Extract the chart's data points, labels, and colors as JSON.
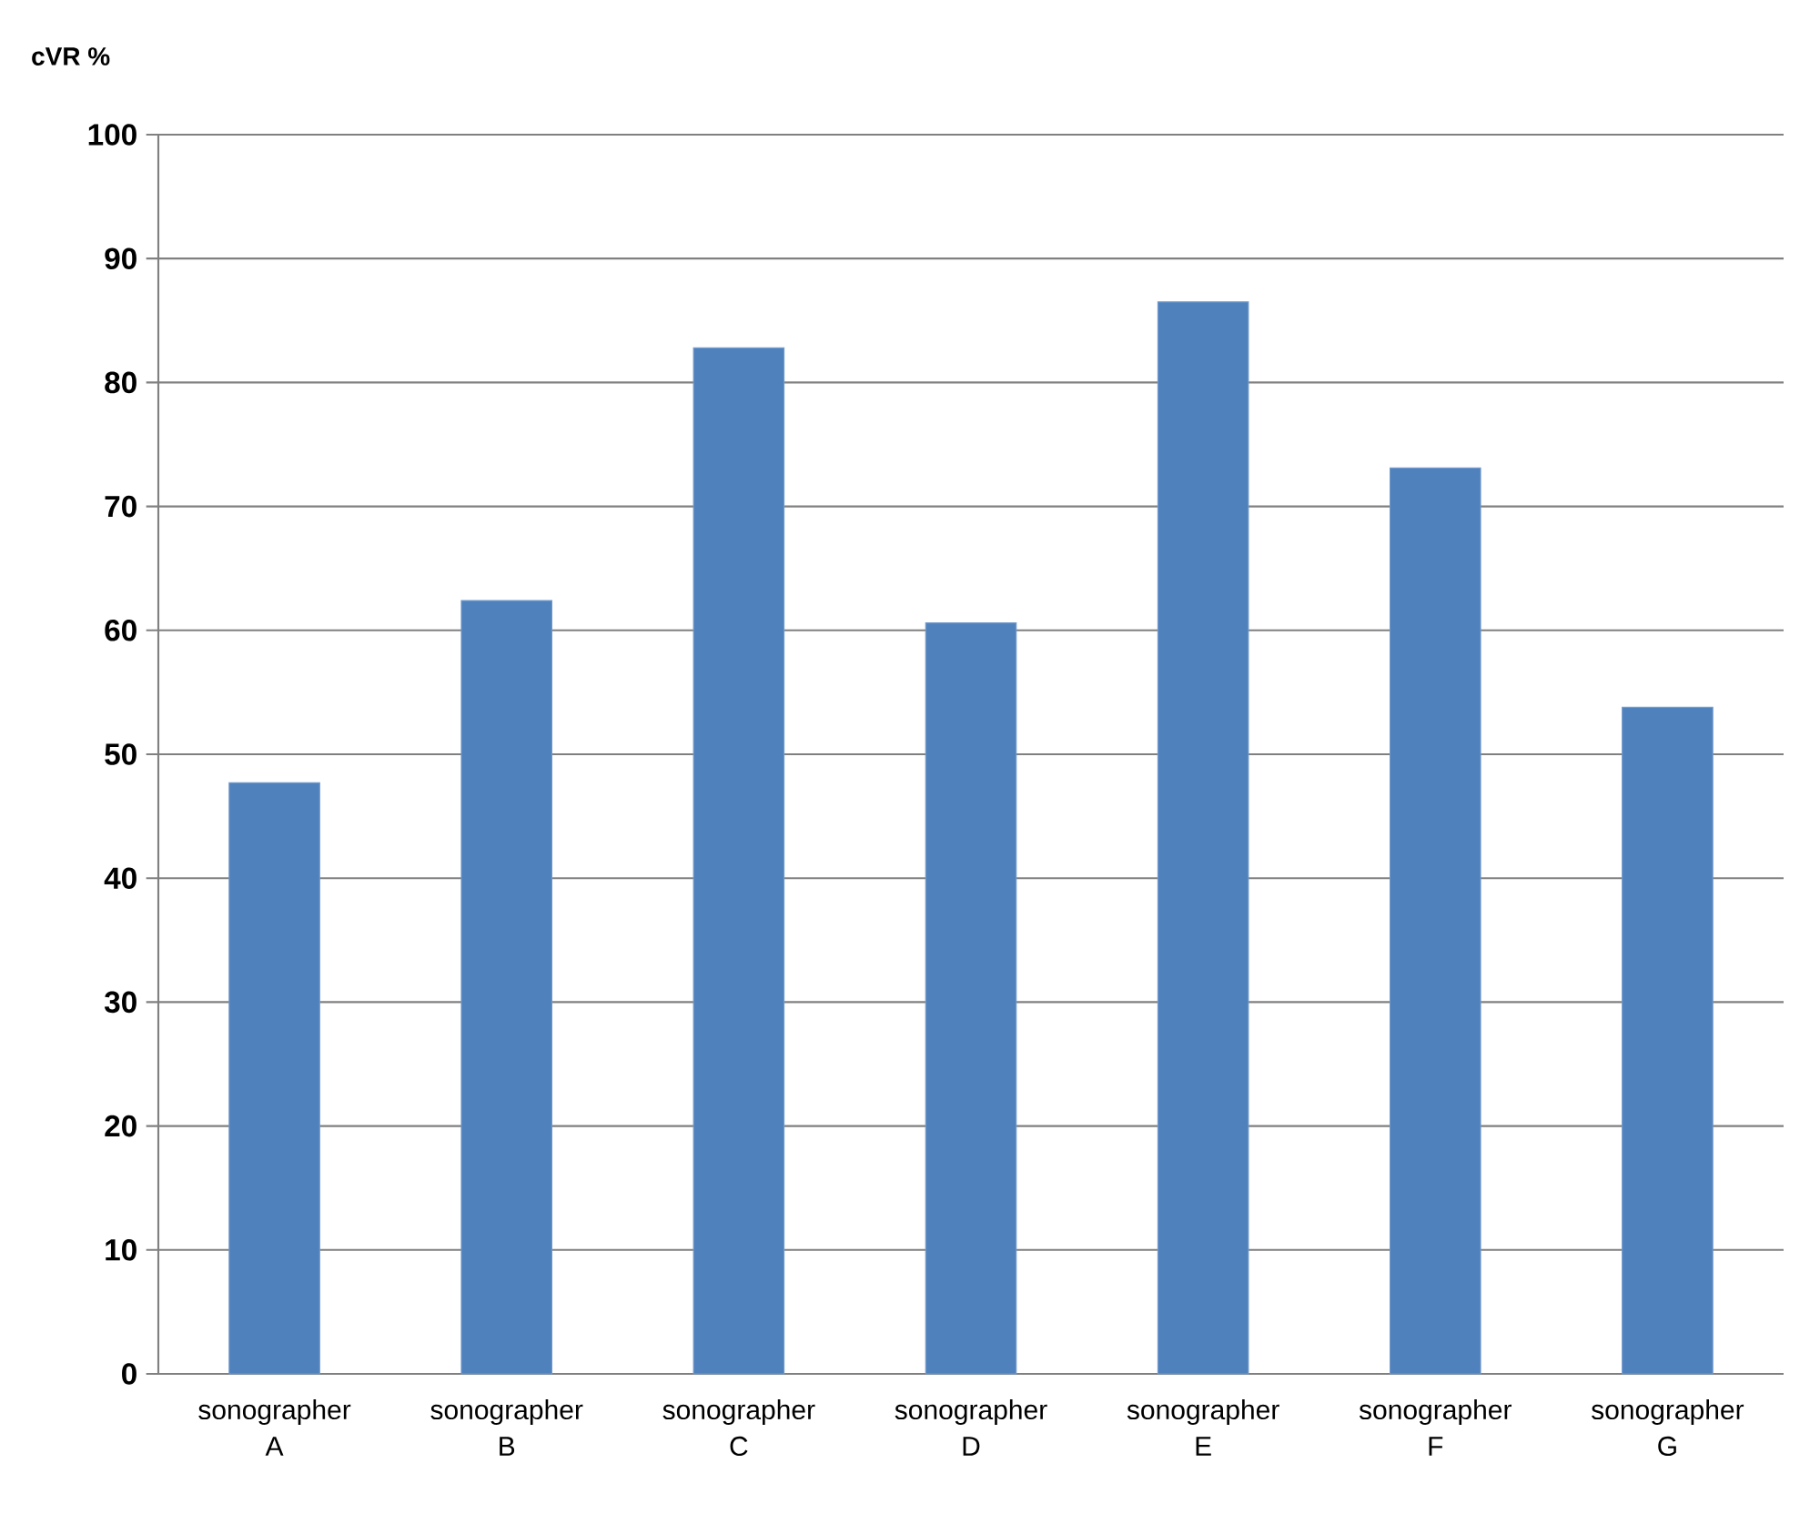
{
  "chart_data": {
    "type": "bar",
    "ylabel": "cVR %",
    "categories": [
      "sonographer A",
      "sonographer B",
      "sonographer C",
      "sonographer D",
      "sonographer E",
      "sonographer F",
      "sonographer G"
    ],
    "values": [
      47.7,
      62.4,
      82.8,
      60.6,
      86.5,
      73.1,
      53.8
    ],
    "color": "#4f81bd",
    "ylim": [
      0,
      100
    ],
    "yticks": [
      0,
      10,
      20,
      30,
      40,
      50,
      60,
      70,
      80,
      90,
      100
    ],
    "grid": "y"
  }
}
